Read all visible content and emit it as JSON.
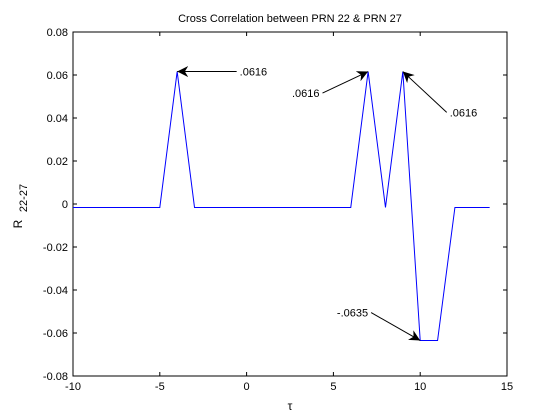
{
  "chart_data": {
    "type": "line",
    "title": "Cross Correlation between PRN 22 & PRN 27",
    "xlabel": "τ",
    "ylabel_main": "R",
    "ylabel_sub": "22-27",
    "xlim": [
      -10,
      15
    ],
    "ylim": [
      -0.08,
      0.08
    ],
    "xticks": [
      -10,
      -5,
      0,
      5,
      10,
      15
    ],
    "xtick_labels": [
      "-10",
      "-5",
      "0",
      "5",
      "10",
      "15"
    ],
    "yticks": [
      -0.08,
      -0.06,
      -0.04,
      -0.02,
      0,
      0.02,
      0.04,
      0.06,
      0.08
    ],
    "ytick_labels": [
      "-0.08",
      "-0.06",
      "-0.04",
      "-0.02",
      "0",
      "0.02",
      "0.04",
      "0.06",
      "0.08"
    ],
    "grid": false,
    "series": [
      {
        "color": "#0000ff",
        "x": [
          -10,
          -5,
          -4,
          -3,
          6,
          7,
          8,
          9,
          10,
          11,
          12,
          14
        ],
        "y": [
          -0.0016,
          -0.0016,
          0.0616,
          -0.0016,
          -0.0016,
          0.0616,
          -0.0016,
          0.0616,
          -0.0635,
          -0.0635,
          -0.0016,
          -0.0016
        ]
      }
    ],
    "annotations": [
      {
        "text": ".0616",
        "x": -4,
        "y": 0.0616,
        "text_x": -0.4,
        "text_y": 0.0616,
        "anchor": "start"
      },
      {
        "text": ".0616",
        "x": 7,
        "y": 0.0616,
        "text_x": 4.2,
        "text_y": 0.0516,
        "anchor": "end"
      },
      {
        "text": ".0616",
        "x": 9,
        "y": 0.0616,
        "text_x": 11.7,
        "text_y": 0.0426,
        "anchor": "start"
      },
      {
        "text": "-.0635",
        "x": 10,
        "y": -0.0635,
        "text_x": 7.0,
        "text_y": -0.0505,
        "anchor": "end"
      }
    ]
  }
}
